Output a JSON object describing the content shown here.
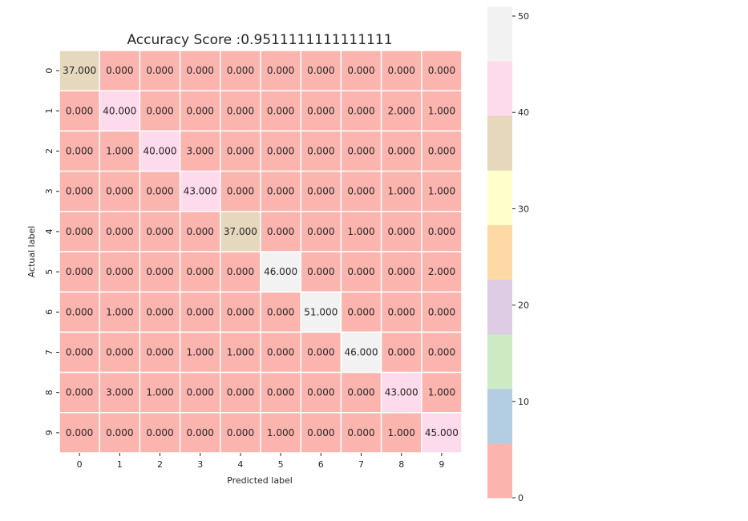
{
  "chart_data": {
    "type": "heatmap",
    "title": "Accuracy Score :0.9511111111111111",
    "xlabel": "Predicted label",
    "ylabel": "Actual label",
    "x_ticklabels": [
      "0",
      "1",
      "2",
      "3",
      "4",
      "5",
      "6",
      "7",
      "8",
      "9"
    ],
    "y_ticklabels": [
      "0",
      "1",
      "2",
      "3",
      "4",
      "5",
      "6",
      "7",
      "8",
      "9"
    ],
    "values": [
      [
        37,
        0,
        0,
        0,
        0,
        0,
        0,
        0,
        0,
        0
      ],
      [
        0,
        40,
        0,
        0,
        0,
        0,
        0,
        0,
        2,
        1
      ],
      [
        0,
        1,
        40,
        3,
        0,
        0,
        0,
        0,
        0,
        0
      ],
      [
        0,
        0,
        0,
        43,
        0,
        0,
        0,
        0,
        1,
        1
      ],
      [
        0,
        0,
        0,
        0,
        37,
        0,
        0,
        1,
        0,
        0
      ],
      [
        0,
        0,
        0,
        0,
        0,
        46,
        0,
        0,
        0,
        2
      ],
      [
        0,
        1,
        0,
        0,
        0,
        0,
        51,
        0,
        0,
        0
      ],
      [
        0,
        0,
        0,
        1,
        1,
        0,
        0,
        46,
        0,
        0
      ],
      [
        0,
        3,
        1,
        0,
        0,
        0,
        0,
        0,
        43,
        1
      ],
      [
        0,
        0,
        0,
        0,
        0,
        1,
        0,
        0,
        1,
        45
      ]
    ],
    "value_format": "0.000",
    "colormap": "Pastel1",
    "colormap_colors": [
      "#fbb4ae",
      "#b3cde3",
      "#ccebc5",
      "#decbe4",
      "#fed9a6",
      "#ffffcc",
      "#e5d8bd",
      "#fddaec",
      "#f2f2f2"
    ],
    "vmin": 0,
    "vmax": 51,
    "colorbar_ticks": [
      0,
      10,
      20,
      30,
      40,
      50
    ],
    "cell_border_color": "#ffffff"
  }
}
